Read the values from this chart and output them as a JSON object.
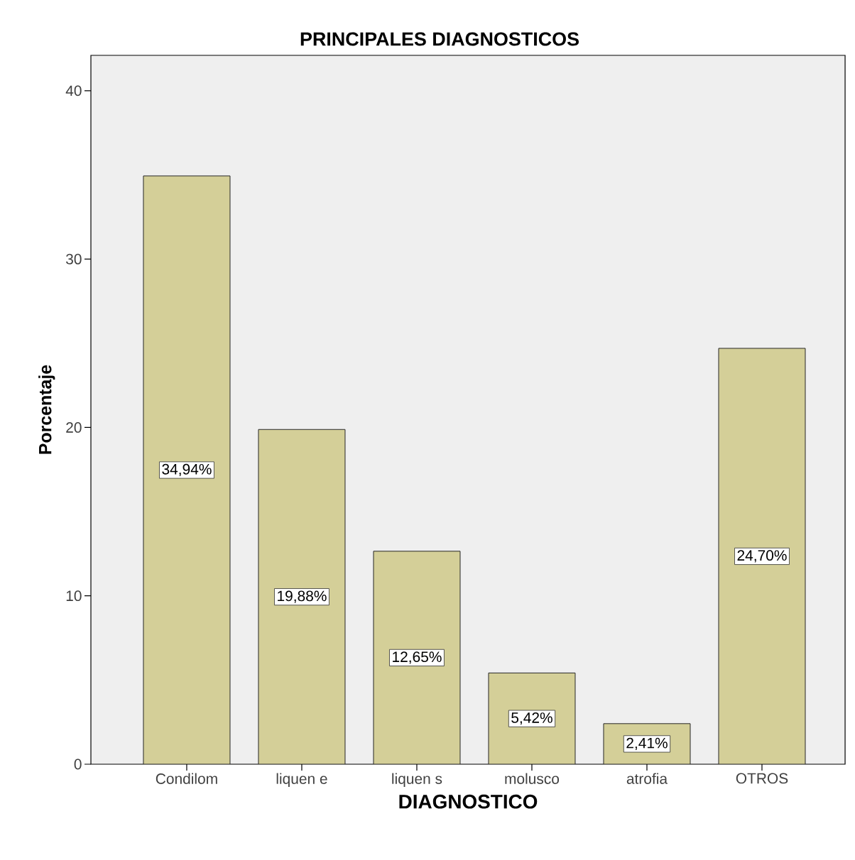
{
  "chart_data": {
    "type": "bar",
    "title": "PRINCIPALES DIAGNOSTICOS",
    "xlabel": "DIAGNOSTICO",
    "ylabel": "Porcentaje",
    "categories": [
      "Condilom",
      "liquen e",
      "liquen s",
      "molusco",
      "atrofia",
      "OTROS"
    ],
    "values": [
      34.94,
      19.88,
      12.65,
      5.42,
      2.41,
      24.7
    ],
    "value_labels": [
      "34,94%",
      "19,88%",
      "12,65%",
      "5,42%",
      "2,41%",
      "24,70%"
    ],
    "color": "#d4cf98",
    "ylim": [
      0,
      42.1
    ],
    "yticks": [
      0,
      10,
      20,
      30,
      40
    ],
    "grid": false
  }
}
